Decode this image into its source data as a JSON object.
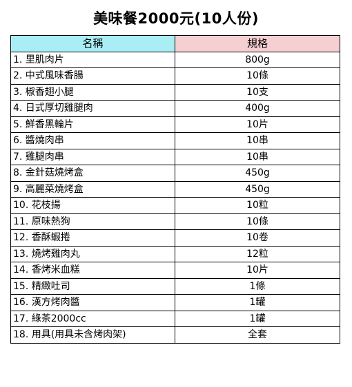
{
  "title": "美味餐2000元(10人份)",
  "header": {
    "name": "名稱",
    "spec": "規格"
  },
  "items": [
    {
      "name": "1. 里肌肉片",
      "spec": "800g"
    },
    {
      "name": "2. 中式風味香腸",
      "spec": "10條"
    },
    {
      "name": "3. 椒香翅小腿",
      "spec": "10支"
    },
    {
      "name": "4. 日式厚切雞腿肉",
      "spec": "400g"
    },
    {
      "name": "5. 鮮香黑輪片",
      "spec": "10片"
    },
    {
      "name": "6. 醬燒肉串",
      "spec": "10串"
    },
    {
      "name": "7. 雞腿肉串",
      "spec": "10串"
    },
    {
      "name": "8. 金針菇燒烤盒",
      "spec": "450g"
    },
    {
      "name": "9. 高麗菜燒烤盒",
      "spec": "450g"
    },
    {
      "name": "10. 花枝揚",
      "spec": "10粒"
    },
    {
      "name": "11. 原味熱狗",
      "spec": "10條"
    },
    {
      "name": "12. 香酥蝦捲",
      "spec": "10卷"
    },
    {
      "name": "13. 燒烤雞肉丸",
      "spec": "12粒"
    },
    {
      "name": "14. 香烤米血糕",
      "spec": "10片"
    },
    {
      "name": "15. 精緻吐司",
      "spec": "1條"
    },
    {
      "name": "16. 漢方烤肉醬",
      "spec": "1罐"
    },
    {
      "name": "17. 綠茶2000cc",
      "spec": "1罐"
    },
    {
      "name": "18. 用具(用具未含烤肉架)",
      "spec": "全套"
    }
  ],
  "colors": {
    "name_header_bg": "#a9eef5",
    "spec_header_bg": "#f6cfd2"
  }
}
